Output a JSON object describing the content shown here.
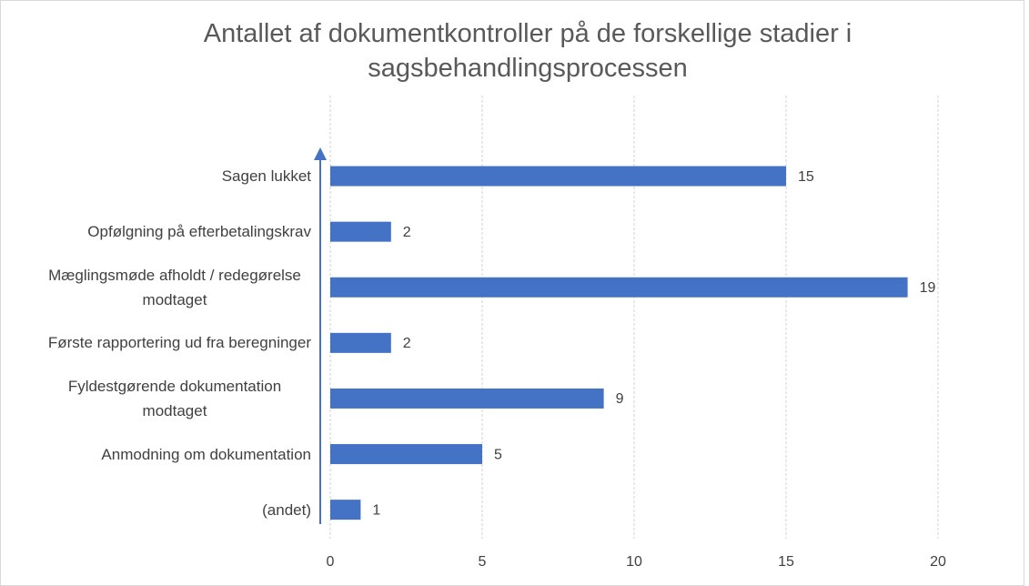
{
  "chart_data": {
    "type": "bar",
    "orientation": "horizontal",
    "title": "Antallet af dokumentkontroller på de forskellige stadier i sagsbehandlingsprocessen",
    "categories": [
      "Sagen lukket",
      "Opfølgning på efterbetalingskrav",
      "Mæglingsmøde afholdt / redegørelse modtaget",
      "Første rapportering ud fra beregninger",
      "Fyldestgørende dokumentation modtaget",
      "Anmodning om dokumentation",
      "(andet)"
    ],
    "values": [
      15,
      2,
      19,
      2,
      9,
      5,
      1
    ],
    "color": "#4472c4",
    "xlim": [
      0,
      20
    ],
    "xticks": [
      0,
      5,
      10,
      15,
      20
    ],
    "grid": true
  }
}
